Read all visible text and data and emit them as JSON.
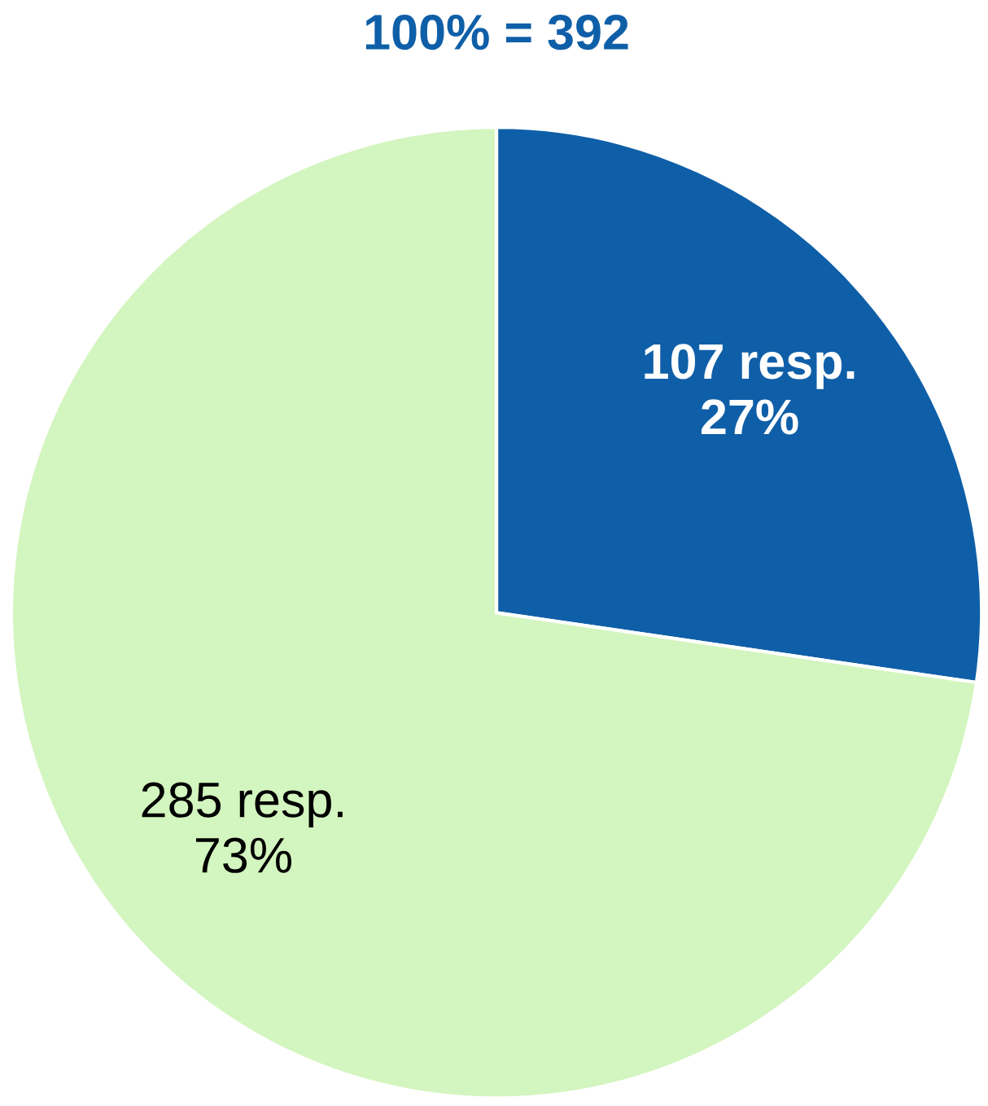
{
  "chart_data": {
    "type": "pie",
    "title": "100% = 392",
    "categories": [
      null,
      null
    ],
    "values": [
      107,
      285
    ],
    "colors": [
      "#0f5fa8",
      "#d3f5bf"
    ],
    "value_labels": [
      "107 resp.\n27%",
      "285 resp.\n73%"
    ]
  }
}
